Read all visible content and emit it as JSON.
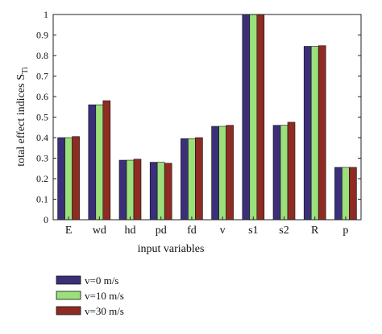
{
  "chart_data": {
    "type": "bar",
    "xlabel": "input variables",
    "ylabel": "total effect indices",
    "ylabel_subscript": "Ti",
    "ylabel_symbol": "S",
    "ylim": [
      0,
      1
    ],
    "yticks": [
      "0",
      "0.1",
      "0.2",
      "0.3",
      "0.4",
      "0.5",
      "0.6",
      "0.7",
      "0.8",
      "0.9",
      "1"
    ],
    "categories": [
      "E",
      "wd",
      "hd",
      "pd",
      "fd",
      "v",
      "s1",
      "s2",
      "R",
      "p"
    ],
    "series": [
      {
        "name": "v=0 m/s",
        "color": "#3b2f7a",
        "values": [
          0.4,
          0.56,
          0.29,
          0.28,
          0.395,
          0.455,
          1.0,
          0.46,
          0.845,
          0.255
        ]
      },
      {
        "name": "v=10 m/s",
        "color": "#9be07a",
        "values": [
          0.4,
          0.56,
          0.29,
          0.28,
          0.395,
          0.455,
          1.0,
          0.46,
          0.845,
          0.255
        ]
      },
      {
        "name": "v=30 m/s",
        "color": "#8e2b22",
        "values": [
          0.405,
          0.58,
          0.295,
          0.275,
          0.4,
          0.46,
          1.0,
          0.475,
          0.848,
          0.255
        ]
      }
    ],
    "legend_position": "bottom-left",
    "grid": false
  }
}
